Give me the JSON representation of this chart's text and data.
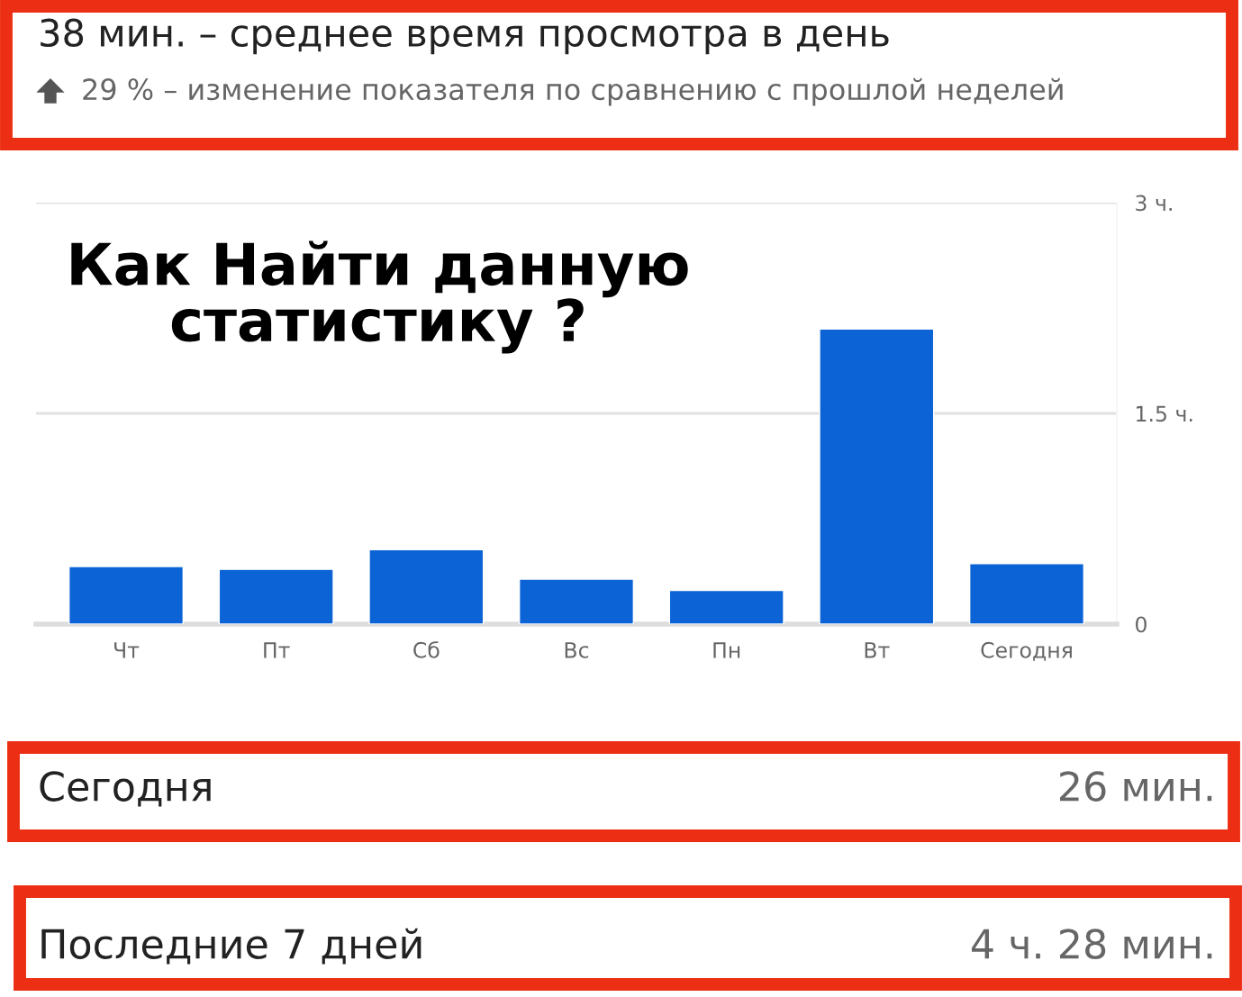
{
  "chart_data": {
    "type": "bar",
    "title": "38 мин. – среднее время просмотра в день",
    "subtitle": "29 % – изменение показателя по сравнению с прошлой неделей",
    "categories": [
      "Чт",
      "Пт",
      "Сб",
      "Вс",
      "Пн",
      "Вт",
      "Сегодня"
    ],
    "values": [
      0.41,
      0.39,
      0.53,
      0.32,
      0.24,
      2.1,
      0.43
    ],
    "color": "#0b63d6",
    "ylim": [
      0,
      3
    ],
    "yticks": [
      0,
      {
        "value": 1.5,
        "label": "1.5 ч."
      },
      {
        "value": 3,
        "label": "3 ч."
      }
    ],
    "grid": "y",
    "annotations": [
      "Как Найти данную\nстатистику ?",
      "Сегодня",
      "26 мин.",
      "Последние 7 дней",
      "4 ч. 28 мин."
    ]
  }
}
